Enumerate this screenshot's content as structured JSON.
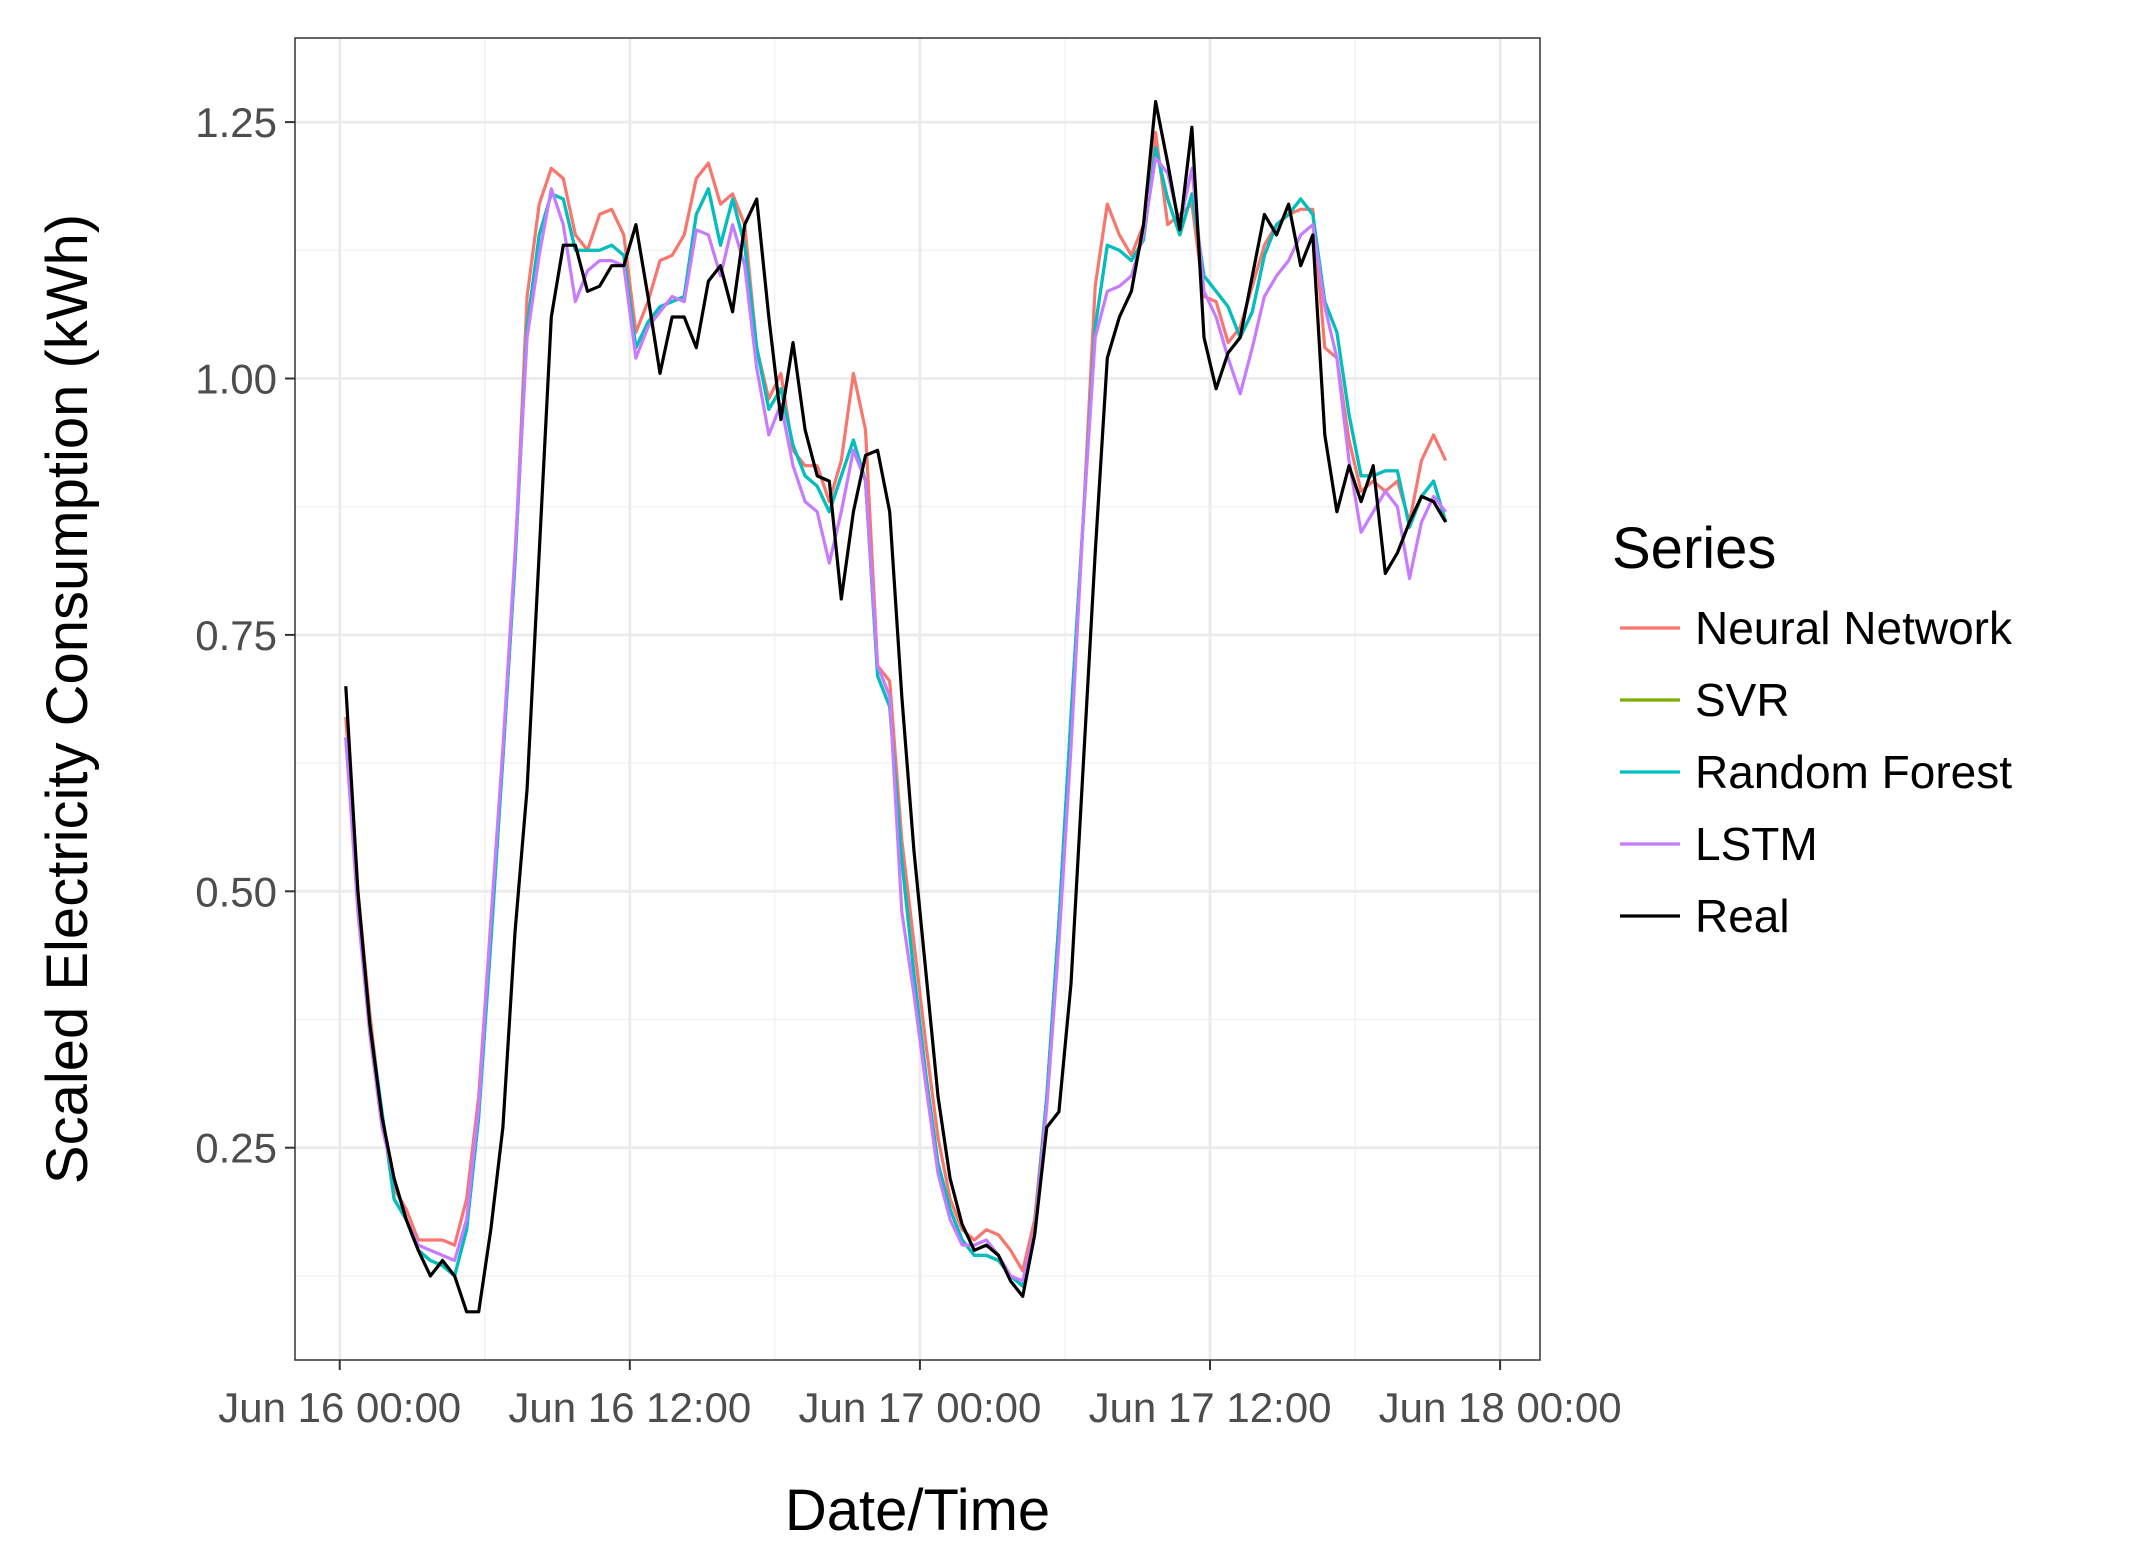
{
  "chart_data": {
    "type": "line",
    "title": "",
    "xlabel": "Date/Time",
    "ylabel": "Scaled Electricity Consumption (kWh)",
    "x_tick_labels": [
      "Jun 16 00:00",
      "Jun 16 12:00",
      "Jun 17 00:00",
      "Jun 17 12:00",
      "Jun 18 00:00"
    ],
    "x_tick_hours": [
      0,
      12,
      24,
      36,
      48
    ],
    "xlim_hours": [
      -1.85,
      49.65
    ],
    "y_tick_labels": [
      "0.25",
      "0.50",
      "0.75",
      "1.00",
      "1.25"
    ],
    "y_ticks": [
      0.25,
      0.5,
      0.75,
      1.0,
      1.25
    ],
    "ylim": [
      0.043,
      1.332
    ],
    "grid": true,
    "legend_title": "Series",
    "legend_position": "right",
    "x_hours": [
      0.25,
      0.75,
      1.25,
      1.75,
      2.25,
      2.75,
      3.25,
      3.75,
      4.25,
      4.75,
      5.25,
      5.75,
      6.25,
      6.75,
      7.25,
      7.75,
      8.25,
      8.75,
      9.25,
      9.75,
      10.25,
      10.75,
      11.25,
      11.75,
      12.25,
      12.75,
      13.25,
      13.75,
      14.25,
      14.75,
      15.25,
      15.75,
      16.25,
      16.75,
      17.25,
      17.75,
      18.25,
      18.75,
      19.25,
      19.75,
      20.25,
      20.75,
      21.25,
      21.75,
      22.25,
      22.75,
      23.25,
      23.75,
      24.25,
      24.75,
      25.25,
      25.75,
      26.25,
      26.75,
      27.25,
      27.75,
      28.25,
      28.75,
      29.25,
      29.75,
      30.25,
      30.75,
      31.25,
      31.75,
      32.25,
      32.75,
      33.25,
      33.75,
      34.25,
      34.75,
      35.25,
      35.75,
      36.25,
      36.75,
      37.25,
      37.75,
      38.25,
      38.75,
      39.25,
      39.75,
      40.25,
      40.75,
      41.25,
      41.75,
      42.25,
      42.75,
      43.25,
      43.75,
      44.25,
      44.75,
      45.25,
      45.75,
      46.25,
      46.75,
      47.25,
      47.75
    ],
    "series": [
      {
        "name": "Neural Network",
        "color": "#F8766D",
        "values": [
          0.67,
          0.5,
          0.38,
          0.28,
          0.21,
          0.19,
          0.16,
          0.16,
          0.16,
          0.155,
          0.2,
          0.3,
          0.47,
          0.63,
          0.82,
          1.08,
          1.17,
          1.205,
          1.195,
          1.14,
          1.125,
          1.16,
          1.165,
          1.14,
          1.045,
          1.075,
          1.115,
          1.12,
          1.14,
          1.195,
          1.21,
          1.17,
          1.18,
          1.15,
          1.03,
          0.98,
          1.005,
          0.93,
          0.915,
          0.915,
          0.88,
          0.92,
          1.005,
          0.95,
          0.72,
          0.705,
          0.55,
          0.45,
          0.35,
          0.26,
          0.2,
          0.17,
          0.16,
          0.17,
          0.165,
          0.15,
          0.13,
          0.18,
          0.3,
          0.47,
          0.67,
          0.86,
          1.09,
          1.17,
          1.14,
          1.12,
          1.15,
          1.24,
          1.15,
          1.16,
          1.17,
          1.08,
          1.075,
          1.035,
          1.05,
          1.09,
          1.13,
          1.15,
          1.16,
          1.165,
          1.165,
          1.03,
          1.02,
          0.94,
          0.89,
          0.9,
          0.89,
          0.9,
          0.86,
          0.92,
          0.945,
          0.92
        ]
      },
      {
        "name": "SVR",
        "color": "#7CAE00",
        "values": [
          0.65,
          0.495,
          0.37,
          0.285,
          0.2,
          0.18,
          0.15,
          0.14,
          0.135,
          0.125,
          0.17,
          0.28,
          0.45,
          0.63,
          0.82,
          1.05,
          1.14,
          1.18,
          1.175,
          1.125,
          1.125,
          1.125,
          1.13,
          1.12,
          1.03,
          1.055,
          1.07,
          1.075,
          1.08,
          1.16,
          1.185,
          1.13,
          1.175,
          1.13,
          1.03,
          0.97,
          0.99,
          0.935,
          0.905,
          0.895,
          0.87,
          0.905,
          0.94,
          0.9,
          0.71,
          0.68,
          0.53,
          0.42,
          0.32,
          0.235,
          0.19,
          0.16,
          0.145,
          0.145,
          0.14,
          0.125,
          0.115,
          0.17,
          0.3,
          0.47,
          0.67,
          0.86,
          1.05,
          1.13,
          1.125,
          1.115,
          1.135,
          1.225,
          1.175,
          1.14,
          1.18,
          1.1,
          1.085,
          1.07,
          1.04,
          1.065,
          1.12,
          1.15,
          1.16,
          1.175,
          1.16,
          1.075,
          1.045,
          0.965,
          0.905,
          0.905,
          0.91,
          0.91,
          0.855,
          0.885,
          0.9,
          0.86
        ]
      },
      {
        "name": "Random Forest",
        "color": "#00BFC4",
        "values": [
          0.65,
          0.495,
          0.37,
          0.285,
          0.2,
          0.18,
          0.15,
          0.14,
          0.135,
          0.125,
          0.17,
          0.28,
          0.45,
          0.63,
          0.82,
          1.05,
          1.14,
          1.18,
          1.175,
          1.125,
          1.125,
          1.125,
          1.13,
          1.12,
          1.03,
          1.055,
          1.07,
          1.075,
          1.08,
          1.16,
          1.185,
          1.13,
          1.175,
          1.13,
          1.03,
          0.97,
          0.99,
          0.935,
          0.905,
          0.895,
          0.87,
          0.905,
          0.94,
          0.9,
          0.71,
          0.68,
          0.53,
          0.42,
          0.32,
          0.235,
          0.19,
          0.16,
          0.145,
          0.145,
          0.14,
          0.125,
          0.115,
          0.17,
          0.3,
          0.47,
          0.67,
          0.86,
          1.05,
          1.13,
          1.125,
          1.115,
          1.135,
          1.225,
          1.175,
          1.14,
          1.18,
          1.1,
          1.085,
          1.07,
          1.04,
          1.065,
          1.12,
          1.15,
          1.16,
          1.175,
          1.16,
          1.075,
          1.045,
          0.965,
          0.905,
          0.905,
          0.91,
          0.91,
          0.855,
          0.885,
          0.9,
          0.86
        ]
      },
      {
        "name": "LSTM",
        "color": "#C77CFF",
        "values": [
          0.65,
          0.48,
          0.36,
          0.27,
          0.22,
          0.18,
          0.155,
          0.15,
          0.145,
          0.14,
          0.18,
          0.29,
          0.47,
          0.64,
          0.83,
          1.04,
          1.12,
          1.185,
          1.15,
          1.075,
          1.105,
          1.115,
          1.115,
          1.11,
          1.02,
          1.05,
          1.065,
          1.08,
          1.075,
          1.145,
          1.14,
          1.1,
          1.15,
          1.11,
          1.01,
          0.945,
          0.975,
          0.915,
          0.88,
          0.87,
          0.82,
          0.87,
          0.93,
          0.9,
          0.72,
          0.69,
          0.48,
          0.4,
          0.31,
          0.225,
          0.18,
          0.155,
          0.155,
          0.16,
          0.145,
          0.125,
          0.12,
          0.17,
          0.29,
          0.45,
          0.64,
          0.86,
          1.04,
          1.085,
          1.09,
          1.1,
          1.14,
          1.215,
          1.2,
          1.15,
          1.205,
          1.085,
          1.06,
          1.02,
          0.985,
          1.03,
          1.08,
          1.1,
          1.115,
          1.14,
          1.15,
          1.07,
          1.02,
          0.92,
          0.85,
          0.87,
          0.89,
          0.875,
          0.805,
          0.86,
          0.885,
          0.87
        ]
      },
      {
        "name": "Real",
        "color": "#000000",
        "values": [
          0.7,
          0.5,
          0.37,
          0.28,
          0.22,
          0.18,
          0.15,
          0.125,
          0.14,
          0.125,
          0.09,
          0.09,
          0.17,
          0.27,
          0.46,
          0.6,
          0.83,
          1.06,
          1.13,
          1.13,
          1.085,
          1.09,
          1.11,
          1.11,
          1.15,
          1.08,
          1.005,
          1.06,
          1.06,
          1.03,
          1.095,
          1.11,
          1.065,
          1.15,
          1.175,
          1.06,
          0.96,
          1.035,
          0.95,
          0.905,
          0.9,
          0.785,
          0.87,
          0.925,
          0.93,
          0.87,
          0.69,
          0.54,
          0.42,
          0.3,
          0.22,
          0.175,
          0.15,
          0.155,
          0.145,
          0.12,
          0.105,
          0.165,
          0.27,
          0.285,
          0.41,
          0.62,
          0.83,
          1.02,
          1.06,
          1.085,
          1.15,
          1.27,
          1.21,
          1.145,
          1.245,
          1.04,
          0.99,
          1.025,
          1.04,
          1.1,
          1.16,
          1.14,
          1.17,
          1.11,
          1.14,
          0.945,
          0.87,
          0.915,
          0.88,
          0.915,
          0.81,
          0.83,
          0.86,
          0.885,
          0.88,
          0.86
        ]
      }
    ]
  }
}
